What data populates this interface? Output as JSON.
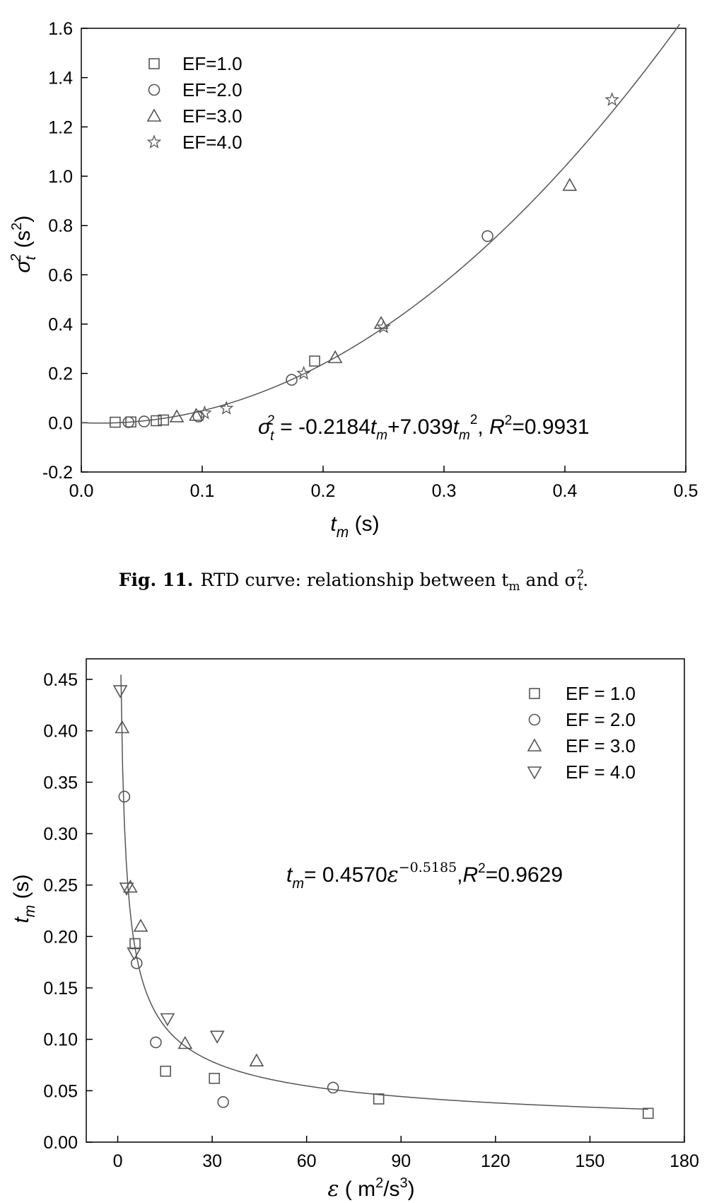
{
  "chart_data": [
    {
      "type": "scatter",
      "xlabel": "t_m (s)",
      "ylabel": "σ_t² (s²)",
      "xlim": [
        0.0,
        0.5
      ],
      "ylim": [
        -0.2,
        1.6
      ],
      "xticks": [
        "0.0",
        "0.1",
        "0.2",
        "0.3",
        "0.4",
        "0.5"
      ],
      "yticks": [
        "-0.2",
        "0.0",
        "0.2",
        "0.4",
        "0.6",
        "0.8",
        "1.0",
        "1.2",
        "1.4",
        "1.6"
      ],
      "legend_position": "top-left",
      "grid": false,
      "equation": {
        "sym": "σ",
        "sub": "t",
        "sup": "2",
        "rhs1": " = -0.2184",
        "tm": "t",
        "msub": "m",
        "mid": "+7.039",
        "tail": ", ",
        "r": "R",
        "r2val": "=0.9931",
        "two": "2"
      },
      "fit": {
        "form": "quadratic",
        "a": -0.2184,
        "b": 7.039
      },
      "series": [
        {
          "name": "EF=1.0",
          "marker": "square",
          "points": [
            [
              0.028,
              0.002
            ],
            [
              0.041,
              0.003
            ],
            [
              0.062,
              0.008
            ],
            [
              0.068,
              0.011
            ],
            [
              0.193,
              0.25
            ]
          ]
        },
        {
          "name": "EF=2.0",
          "marker": "circle",
          "points": [
            [
              0.039,
              0.002
            ],
            [
              0.052,
              0.005
            ],
            [
              0.097,
              0.025
            ],
            [
              0.174,
              0.174
            ],
            [
              0.336,
              0.757
            ]
          ]
        },
        {
          "name": "EF=3.0",
          "marker": "triangle",
          "points": [
            [
              0.079,
              0.024
            ],
            [
              0.095,
              0.03
            ],
            [
              0.21,
              0.264
            ],
            [
              0.248,
              0.403
            ],
            [
              0.404,
              0.963
            ]
          ]
        },
        {
          "name": "EF=4.0",
          "marker": "star",
          "points": [
            [
              0.102,
              0.039
            ],
            [
              0.12,
              0.058
            ],
            [
              0.184,
              0.2
            ],
            [
              0.25,
              0.388
            ],
            [
              0.439,
              1.31
            ]
          ]
        }
      ]
    },
    {
      "type": "scatter",
      "xlabel": "ε ( m²/s³)",
      "ylabel": "t_m (s)",
      "xlim": [
        -10,
        180
      ],
      "ylim": [
        0.0,
        0.47
      ],
      "xticks": [
        "0",
        "30",
        "60",
        "90",
        "120",
        "150",
        "180"
      ],
      "yticks": [
        "0.00",
        "0.05",
        "0.10",
        "0.15",
        "0.20",
        "0.25",
        "0.30",
        "0.35",
        "0.40",
        "0.45"
      ],
      "legend_position": "top-right",
      "grid": false,
      "equation": {
        "tm": "t",
        "msub": "m",
        "mid": "= 0.4570",
        "eps": "ε",
        "exp": "−0.5185",
        "tail": ",",
        "r": "R",
        "two": "2",
        "r2val": "=0.9629"
      },
      "fit": {
        "form": "power",
        "a": 0.457,
        "b": -0.5185
      },
      "series": [
        {
          "name": "EF = 1.0",
          "marker": "square",
          "points": [
            [
              5.5,
              0.193
            ],
            [
              15.2,
              0.069
            ],
            [
              30.7,
              0.062
            ],
            [
              82.9,
              0.042
            ],
            [
              168.5,
              0.028
            ]
          ]
        },
        {
          "name": "EF = 2.0",
          "marker": "circle",
          "points": [
            [
              2.1,
              0.336
            ],
            [
              6.0,
              0.174
            ],
            [
              12.1,
              0.097
            ],
            [
              33.5,
              0.039
            ],
            [
              68.4,
              0.053
            ]
          ]
        },
        {
          "name": "EF = 3.0",
          "marker": "triangle",
          "points": [
            [
              1.4,
              0.403
            ],
            [
              4.0,
              0.248
            ],
            [
              7.3,
              0.21
            ],
            [
              21.4,
              0.096
            ],
            [
              44.1,
              0.079
            ]
          ]
        },
        {
          "name": "EF = 4.0",
          "marker": "triangle-down",
          "points": [
            [
              0.8,
              0.439
            ],
            [
              2.8,
              0.247
            ],
            [
              5.2,
              0.184
            ],
            [
              15.8,
              0.12
            ],
            [
              31.6,
              0.103
            ]
          ]
        }
      ]
    }
  ],
  "caption": {
    "label": "Fig. 11.",
    "text": "RTD curve: relationship between t",
    "sub": "m",
    "mid": " and σ",
    "sup": "2",
    "sub2": "t",
    "end": "."
  },
  "colors": {
    "marker": "#555555",
    "fit_line": "#555555",
    "axis": "#000000"
  }
}
